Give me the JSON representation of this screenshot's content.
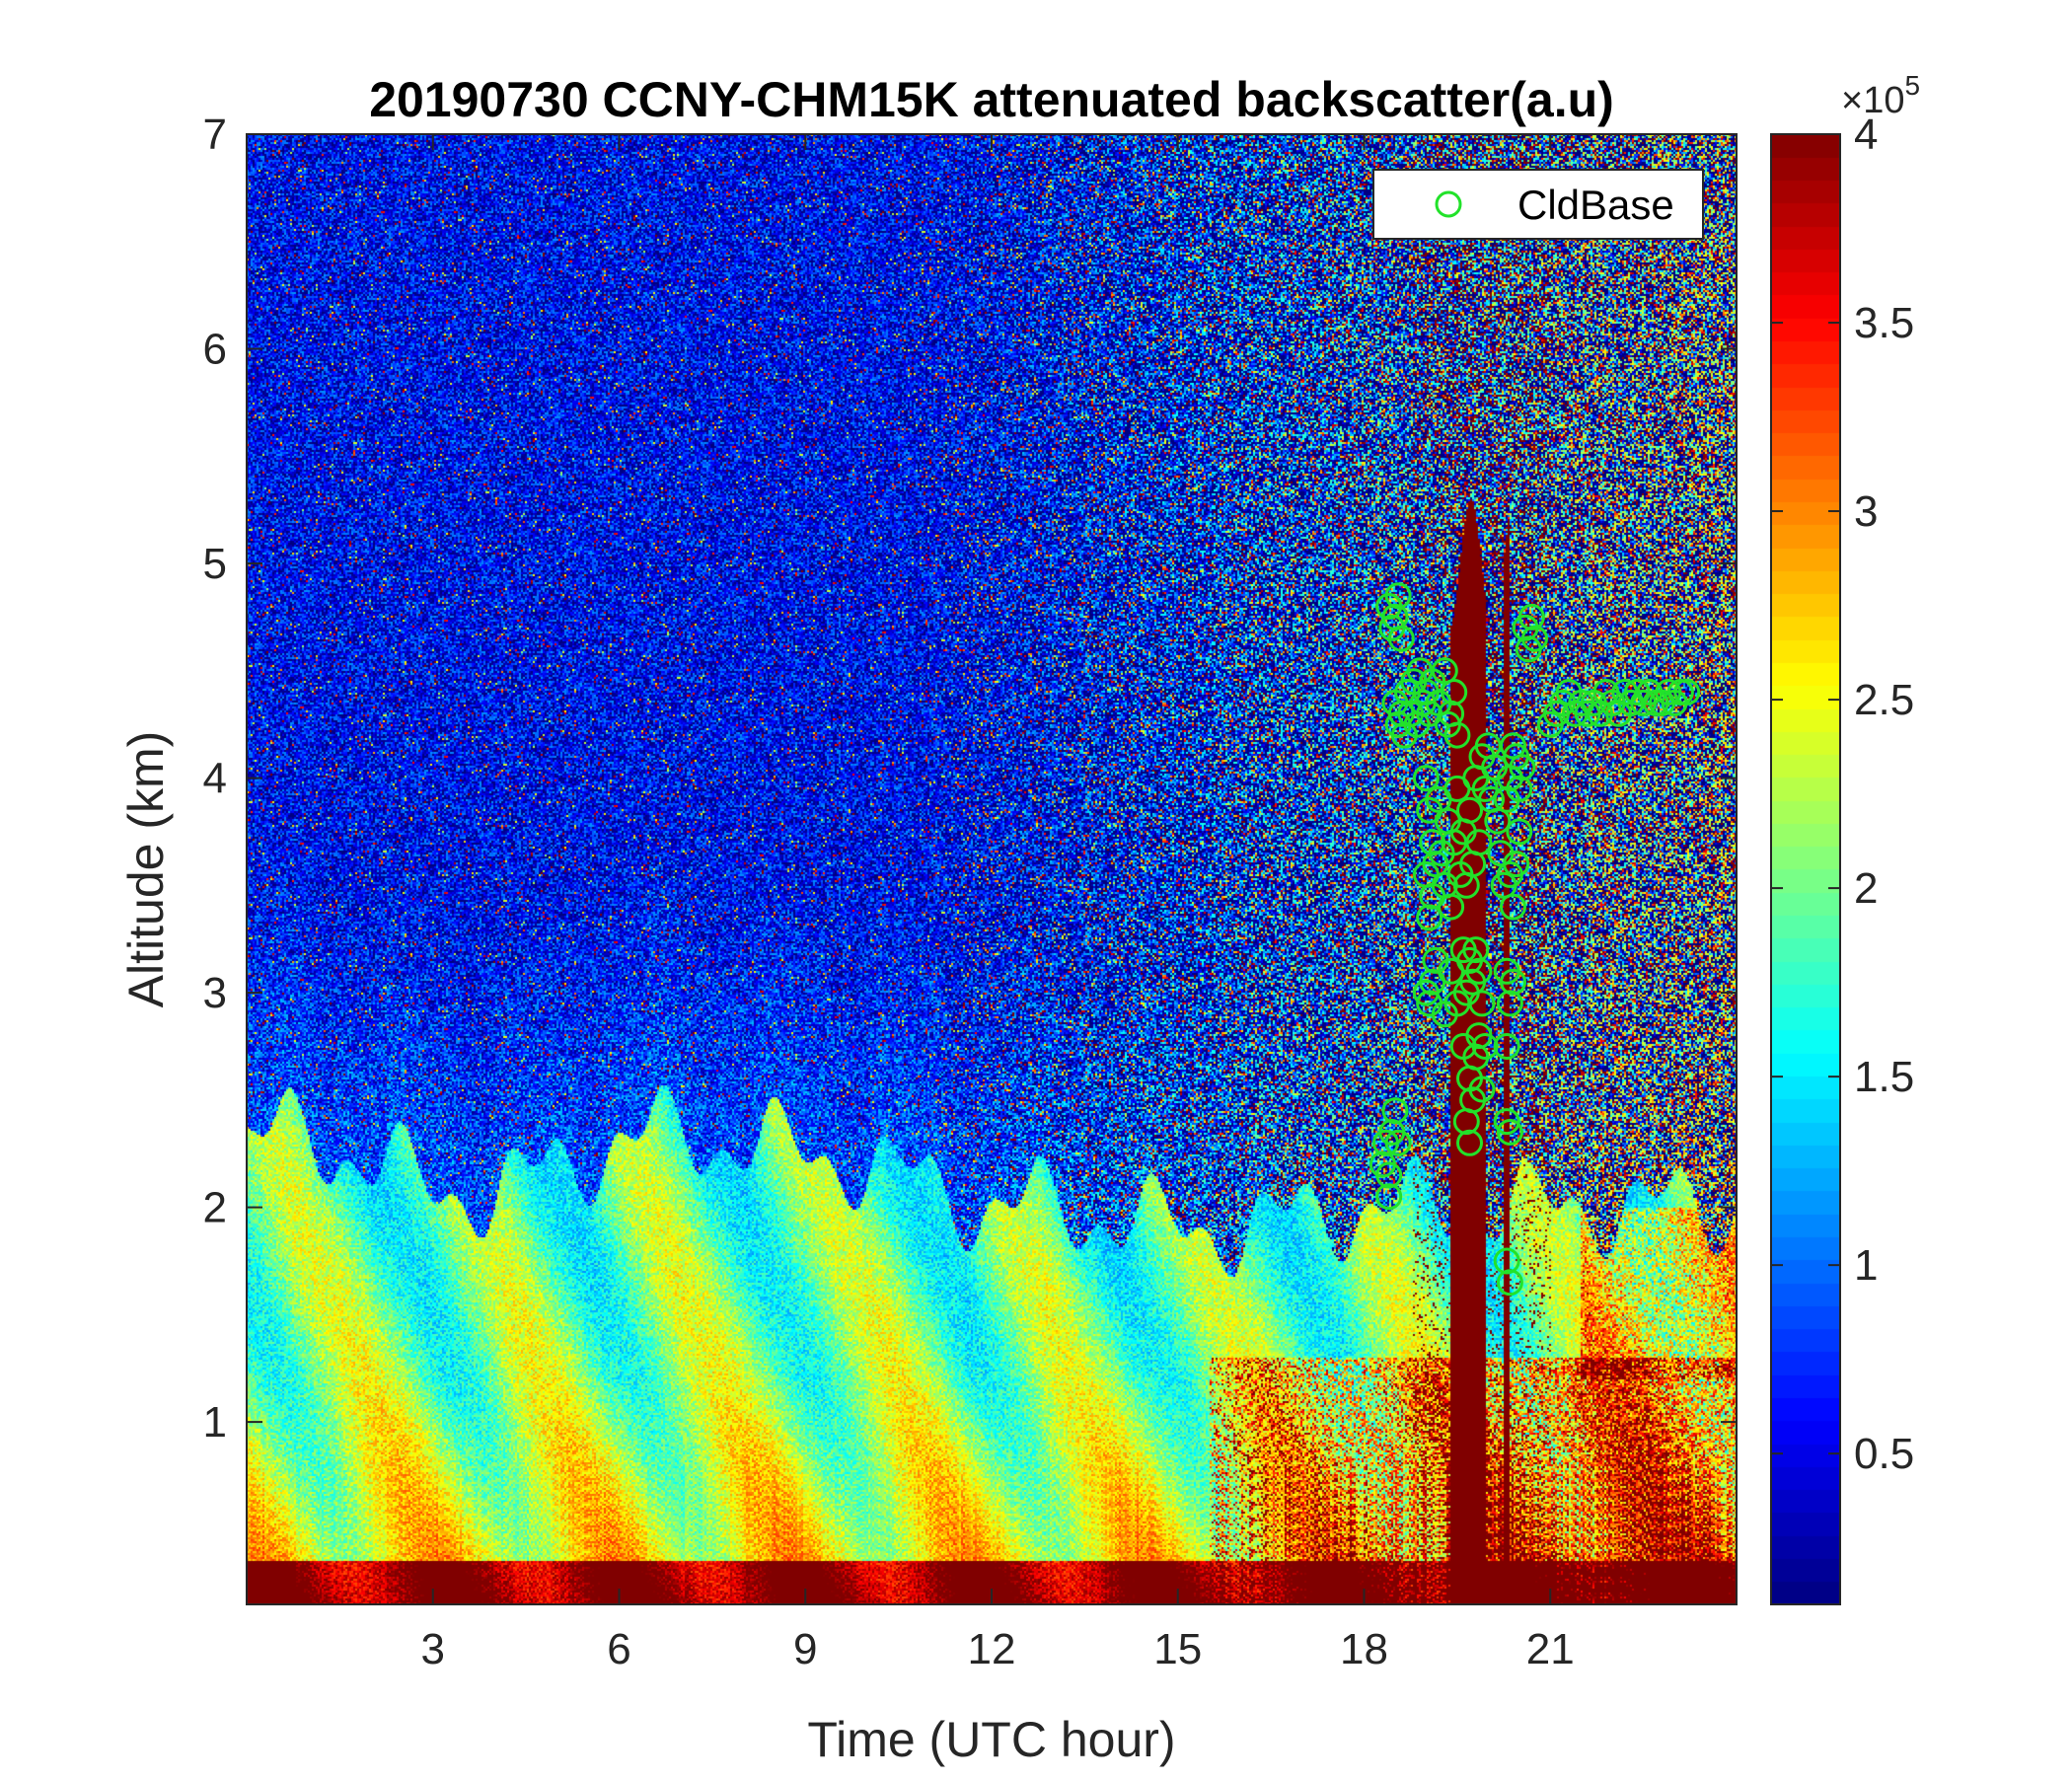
{
  "chart_data": {
    "type": "heatmap",
    "title": "20190730 CCNY-CHM15K attenuated backscatter(a.u)",
    "xlabel": "Time (UTC hour)",
    "ylabel": "Altitude (km)",
    "xlim": [
      0,
      24
    ],
    "ylim": [
      0.15,
      7
    ],
    "x_ticks": [
      3,
      6,
      9,
      12,
      15,
      18,
      21
    ],
    "x_tick_labels": [
      "3",
      "6",
      "9",
      "12",
      "15",
      "18",
      "21"
    ],
    "y_ticks": [
      1,
      2,
      3,
      4,
      5,
      6,
      7
    ],
    "y_tick_labels": [
      "1",
      "2",
      "3",
      "4",
      "5",
      "6",
      "7"
    ],
    "colorbar": {
      "range": [
        0.1,
        4
      ],
      "ticks": [
        0.5,
        1,
        1.5,
        2,
        2.5,
        3,
        3.5,
        4
      ],
      "tick_labels": [
        "0.5",
        "1",
        "1.5",
        "2",
        "2.5",
        "3",
        "3.5",
        "4"
      ],
      "multiplier_base": "×10",
      "multiplier_exponent": "5",
      "colormap": "jet"
    },
    "legend": {
      "position": "top-right",
      "entries": [
        "CldBase"
      ]
    },
    "grid": false,
    "marker_color": "#22e22a",
    "boundary_layer_top_km": [
      [
        0,
        2.3
      ],
      [
        1,
        2.35
      ],
      [
        2,
        2.2
      ],
      [
        3,
        2.1
      ],
      [
        4,
        2.05
      ],
      [
        5,
        2.2
      ],
      [
        6,
        2.3
      ],
      [
        7,
        2.35
      ],
      [
        8,
        2.3
      ],
      [
        9,
        2.25
      ],
      [
        10,
        2.2
      ],
      [
        11,
        2.1
      ],
      [
        12,
        2.0
      ],
      [
        13,
        2.0
      ],
      [
        14,
        1.95
      ],
      [
        15,
        1.9
      ],
      [
        16,
        1.9
      ],
      [
        17,
        1.95
      ],
      [
        18,
        2.0
      ],
      [
        19,
        2.0
      ],
      [
        20,
        2.0
      ],
      [
        21,
        2.0
      ],
      [
        22,
        2.0
      ],
      [
        23,
        2.0
      ],
      [
        24,
        2.0
      ]
    ],
    "series": [
      {
        "name": "CldBase",
        "points": [
          [
            18.4,
            4.8
          ],
          [
            18.45,
            4.7
          ],
          [
            18.5,
            4.75
          ],
          [
            18.55,
            4.85
          ],
          [
            18.6,
            4.65
          ],
          [
            18.5,
            4.35
          ],
          [
            18.55,
            4.25
          ],
          [
            18.6,
            4.3
          ],
          [
            18.65,
            4.2
          ],
          [
            18.7,
            4.4
          ],
          [
            18.75,
            4.3
          ],
          [
            18.8,
            4.45
          ],
          [
            18.85,
            4.25
          ],
          [
            18.9,
            4.5
          ],
          [
            18.95,
            4.35
          ],
          [
            19.0,
            4.4
          ],
          [
            19.05,
            4.3
          ],
          [
            19.1,
            4.45
          ],
          [
            19.2,
            4.35
          ],
          [
            19.3,
            4.5
          ],
          [
            19.35,
            4.25
          ],
          [
            19.4,
            4.3
          ],
          [
            19.45,
            4.4
          ],
          [
            19.5,
            4.2
          ],
          [
            19.0,
            4.0
          ],
          [
            19.05,
            3.85
          ],
          [
            19.1,
            3.7
          ],
          [
            19.0,
            3.55
          ],
          [
            19.1,
            3.45
          ],
          [
            19.05,
            3.35
          ],
          [
            19.15,
            3.6
          ],
          [
            19.2,
            3.9
          ],
          [
            19.25,
            3.65
          ],
          [
            19.3,
            3.5
          ],
          [
            19.35,
            3.8
          ],
          [
            19.4,
            3.4
          ],
          [
            19.45,
            3.7
          ],
          [
            19.5,
            3.95
          ],
          [
            19.55,
            3.55
          ],
          [
            19.6,
            3.75
          ],
          [
            19.65,
            3.5
          ],
          [
            19.7,
            3.85
          ],
          [
            19.75,
            3.6
          ],
          [
            19.8,
            4.0
          ],
          [
            19.85,
            3.7
          ],
          [
            19.9,
            4.1
          ],
          [
            19.95,
            3.95
          ],
          [
            20.0,
            4.15
          ],
          [
            20.05,
            3.9
          ],
          [
            20.1,
            4.05
          ],
          [
            20.15,
            3.8
          ],
          [
            20.2,
            3.65
          ],
          [
            20.25,
            3.5
          ],
          [
            20.3,
            3.9
          ],
          [
            20.35,
            4.0
          ],
          [
            20.4,
            4.15
          ],
          [
            20.45,
            4.1
          ],
          [
            20.5,
            3.95
          ],
          [
            20.55,
            4.05
          ],
          [
            20.35,
            3.55
          ],
          [
            20.4,
            3.4
          ],
          [
            20.45,
            3.6
          ],
          [
            20.5,
            3.75
          ],
          [
            19.0,
            3.0
          ],
          [
            19.05,
            2.95
          ],
          [
            19.1,
            3.05
          ],
          [
            19.15,
            3.15
          ],
          [
            19.3,
            2.9
          ],
          [
            19.4,
            3.1
          ],
          [
            19.5,
            2.95
          ],
          [
            19.6,
            3.2
          ],
          [
            19.65,
            3.0
          ],
          [
            19.7,
            3.15
          ],
          [
            19.75,
            3.05
          ],
          [
            19.8,
            3.2
          ],
          [
            19.85,
            3.1
          ],
          [
            19.9,
            2.95
          ],
          [
            20.3,
            3.1
          ],
          [
            20.35,
            2.95
          ],
          [
            20.4,
            3.05
          ],
          [
            20.3,
            2.75
          ],
          [
            19.6,
            2.75
          ],
          [
            19.7,
            2.6
          ],
          [
            19.75,
            2.5
          ],
          [
            19.8,
            2.7
          ],
          [
            19.85,
            2.8
          ],
          [
            19.9,
            2.55
          ],
          [
            19.95,
            2.75
          ],
          [
            19.65,
            2.4
          ],
          [
            19.7,
            2.3
          ],
          [
            20.3,
            2.4
          ],
          [
            20.35,
            2.35
          ],
          [
            18.3,
            2.2
          ],
          [
            18.35,
            2.3
          ],
          [
            18.4,
            2.15
          ],
          [
            18.45,
            2.35
          ],
          [
            18.5,
            2.45
          ],
          [
            18.55,
            2.3
          ],
          [
            18.4,
            2.05
          ],
          [
            20.3,
            1.75
          ],
          [
            20.35,
            1.65
          ],
          [
            20.6,
            4.7
          ],
          [
            20.65,
            4.6
          ],
          [
            20.7,
            4.75
          ],
          [
            20.75,
            4.65
          ],
          [
            21.0,
            4.25
          ],
          [
            21.1,
            4.3
          ],
          [
            21.2,
            4.35
          ],
          [
            21.3,
            4.4
          ],
          [
            21.4,
            4.3
          ],
          [
            21.5,
            4.35
          ],
          [
            21.6,
            4.3
          ],
          [
            21.7,
            4.35
          ],
          [
            21.8,
            4.3
          ],
          [
            21.9,
            4.4
          ],
          [
            22.0,
            4.35
          ],
          [
            22.1,
            4.3
          ],
          [
            22.2,
            4.4
          ],
          [
            22.3,
            4.35
          ],
          [
            22.4,
            4.4
          ],
          [
            22.5,
            4.35
          ],
          [
            22.6,
            4.4
          ],
          [
            22.7,
            4.35
          ],
          [
            22.8,
            4.35
          ],
          [
            22.9,
            4.4
          ],
          [
            23.0,
            4.35
          ],
          [
            23.1,
            4.4
          ],
          [
            23.2,
            4.4
          ]
        ]
      }
    ]
  }
}
